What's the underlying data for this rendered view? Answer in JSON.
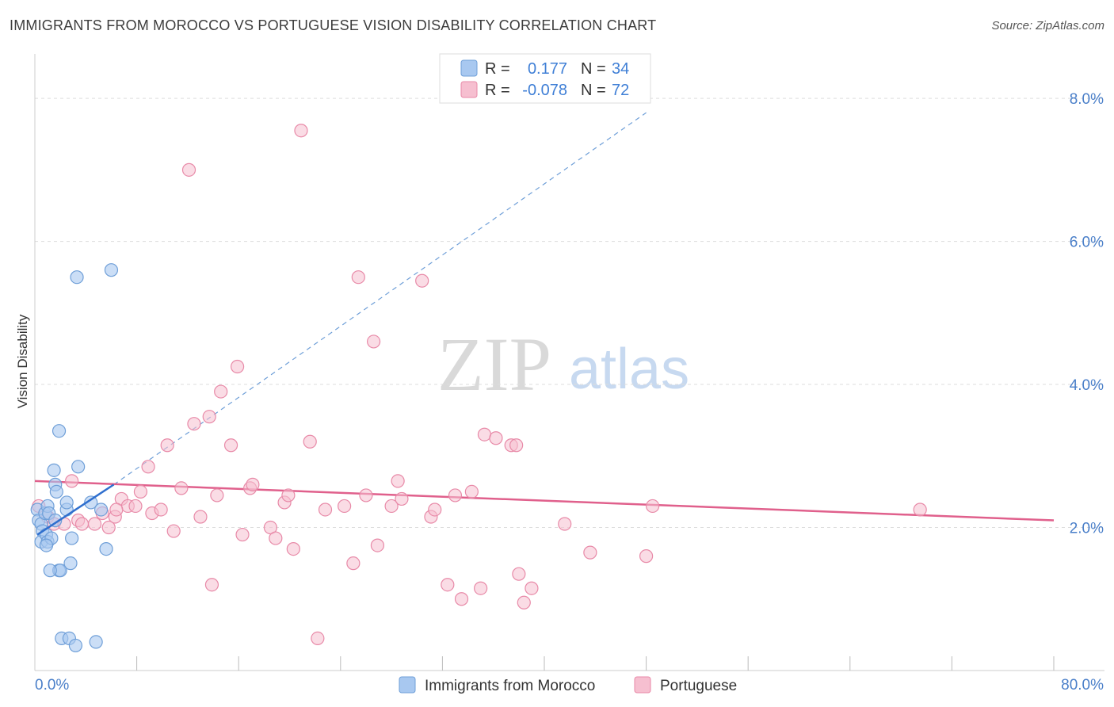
{
  "header": {
    "title": "IMMIGRANTS FROM MOROCCO VS PORTUGUESE VISION DISABILITY CORRELATION CHART",
    "source": "Source: ZipAtlas.com"
  },
  "watermark": {
    "zip": "ZIP",
    "atlas": "atlas"
  },
  "colors": {
    "blue_fill": "#a8c8f0",
    "blue_stroke": "#6f9fd8",
    "blue_line": "#2f6fce",
    "pink_fill": "#f6bfd0",
    "pink_stroke": "#e88aa8",
    "pink_line": "#e0608c",
    "axis_label": "#4a7fc9",
    "grid": "#dddddd"
  },
  "stats": {
    "r_label": "R =",
    "n_label": "N =",
    "series": [
      {
        "r": "0.177",
        "n": "34"
      },
      {
        "r": "-0.078",
        "n": "72"
      }
    ]
  },
  "chart_data": {
    "type": "scatter",
    "title": "IMMIGRANTS FROM MOROCCO VS PORTUGUESE VISION DISABILITY CORRELATION CHART",
    "xlabel": "",
    "ylabel": "Vision Disability",
    "xlim": [
      0,
      80
    ],
    "ylim": [
      0,
      8.5
    ],
    "x_tick_labels": [
      "0.0%",
      "80.0%"
    ],
    "y_ticks": [
      2,
      4,
      6,
      8
    ],
    "y_tick_labels": [
      "2.0%",
      "4.0%",
      "6.0%",
      "8.0%"
    ],
    "legend_position": "bottom",
    "series": [
      {
        "name": "Immigrants from Morocco",
        "trend": {
          "solid": [
            [
              0.2,
              1.9
            ],
            [
              6.2,
              2.6
            ]
          ],
          "dashed": [
            [
              6.2,
              2.6
            ],
            [
              48,
              7.8
            ]
          ]
        },
        "points": [
          [
            0.2,
            2.25
          ],
          [
            0.3,
            2.1
          ],
          [
            0.5,
            2.05
          ],
          [
            0.6,
            1.95
          ],
          [
            0.5,
            1.8
          ],
          [
            0.8,
            2.2
          ],
          [
            0.9,
            1.9
          ],
          [
            1.0,
            2.3
          ],
          [
            1.0,
            1.8
          ],
          [
            1.1,
            2.2
          ],
          [
            1.3,
            1.85
          ],
          [
            1.5,
            2.8
          ],
          [
            1.6,
            2.6
          ],
          [
            1.7,
            2.5
          ],
          [
            1.9,
            3.35
          ],
          [
            1.9,
            1.4
          ],
          [
            2.0,
            1.4
          ],
          [
            2.1,
            0.45
          ],
          [
            2.5,
            2.25
          ],
          [
            2.5,
            2.35
          ],
          [
            2.7,
            0.45
          ],
          [
            2.8,
            1.5
          ],
          [
            2.9,
            1.85
          ],
          [
            3.3,
            5.5
          ],
          [
            3.4,
            2.85
          ],
          [
            3.2,
            0.35
          ],
          [
            4.4,
            2.35
          ],
          [
            4.8,
            0.4
          ],
          [
            5.2,
            2.25
          ],
          [
            5.6,
            1.7
          ],
          [
            6.0,
            5.6
          ],
          [
            1.2,
            1.4
          ],
          [
            1.6,
            2.1
          ],
          [
            0.9,
            1.75
          ]
        ]
      },
      {
        "name": "Portuguese",
        "trend": {
          "solid": [
            [
              0,
              2.65
            ],
            [
              80,
              2.1
            ]
          ]
        },
        "points": [
          [
            0.3,
            2.3
          ],
          [
            1.0,
            2.15
          ],
          [
            1.5,
            2.05
          ],
          [
            2.3,
            2.05
          ],
          [
            2.9,
            2.65
          ],
          [
            3.4,
            2.1
          ],
          [
            3.7,
            2.05
          ],
          [
            4.7,
            2.05
          ],
          [
            5.3,
            2.2
          ],
          [
            5.8,
            2.0
          ],
          [
            6.3,
            2.15
          ],
          [
            6.8,
            2.4
          ],
          [
            7.3,
            2.3
          ],
          [
            7.9,
            2.3
          ],
          [
            8.3,
            2.5
          ],
          [
            8.9,
            2.85
          ],
          [
            9.2,
            2.2
          ],
          [
            10.4,
            3.15
          ],
          [
            10.9,
            1.95
          ],
          [
            11.5,
            2.55
          ],
          [
            12.1,
            7.0
          ],
          [
            12.5,
            3.45
          ],
          [
            13.0,
            2.15
          ],
          [
            13.7,
            3.55
          ],
          [
            13.9,
            1.2
          ],
          [
            14.3,
            2.45
          ],
          [
            14.6,
            3.9
          ],
          [
            15.4,
            3.15
          ],
          [
            15.9,
            4.25
          ],
          [
            16.3,
            1.9
          ],
          [
            16.9,
            2.55
          ],
          [
            18.5,
            2.0
          ],
          [
            18.9,
            1.85
          ],
          [
            19.6,
            2.35
          ],
          [
            19.9,
            2.45
          ],
          [
            20.3,
            1.7
          ],
          [
            20.9,
            7.55
          ],
          [
            21.6,
            3.2
          ],
          [
            22.2,
            0.45
          ],
          [
            22.8,
            2.25
          ],
          [
            24.3,
            2.3
          ],
          [
            25.0,
            1.5
          ],
          [
            25.4,
            5.5
          ],
          [
            26.0,
            2.45
          ],
          [
            26.6,
            4.6
          ],
          [
            26.9,
            1.75
          ],
          [
            28.0,
            2.3
          ],
          [
            28.5,
            2.65
          ],
          [
            28.8,
            2.4
          ],
          [
            30.4,
            5.45
          ],
          [
            31.1,
            2.15
          ],
          [
            31.4,
            2.25
          ],
          [
            32.4,
            1.2
          ],
          [
            33.0,
            2.45
          ],
          [
            33.5,
            1.0
          ],
          [
            34.3,
            2.5
          ],
          [
            35.0,
            1.15
          ],
          [
            35.3,
            3.3
          ],
          [
            36.2,
            3.25
          ],
          [
            37.4,
            3.15
          ],
          [
            37.8,
            3.15
          ],
          [
            38.0,
            1.35
          ],
          [
            38.4,
            0.95
          ],
          [
            39.0,
            1.15
          ],
          [
            41.6,
            2.05
          ],
          [
            43.6,
            1.65
          ],
          [
            48.0,
            1.6
          ],
          [
            48.5,
            2.3
          ],
          [
            69.5,
            2.25
          ],
          [
            9.9,
            2.25
          ],
          [
            17.1,
            2.6
          ],
          [
            6.4,
            2.25
          ]
        ]
      }
    ]
  },
  "legend": {
    "items": [
      {
        "label": "Immigrants from Morocco"
      },
      {
        "label": "Portuguese"
      }
    ]
  }
}
